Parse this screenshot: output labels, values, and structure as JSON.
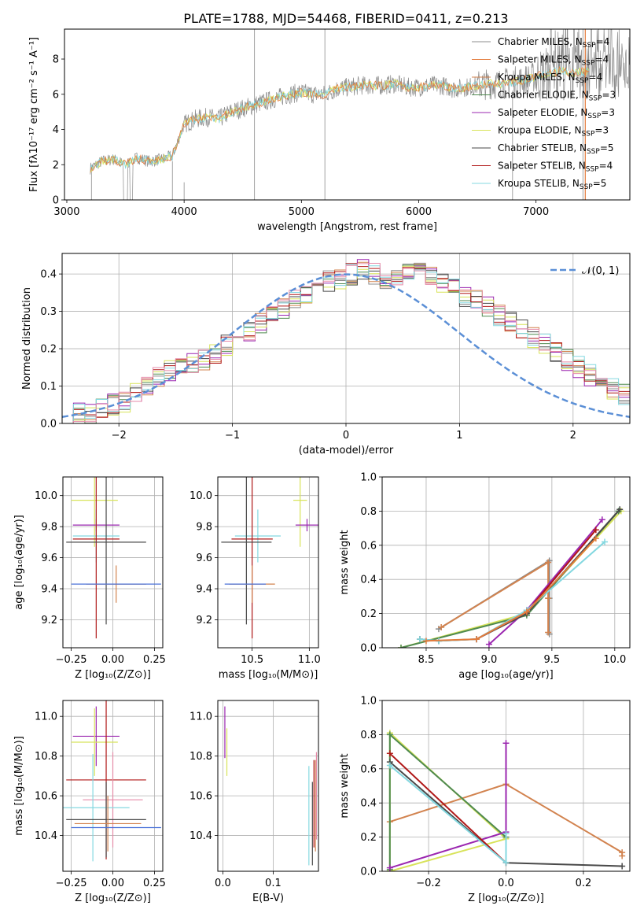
{
  "figure_title": "PLATE=1788, MJD=54468, FIBERID=0411, z=0.213",
  "colors": {
    "Chabrier MILES": "#8c8c8c",
    "Salpeter MILES": "#e37b3c",
    "Kroupa MILES": "#d2834f",
    "Chabrier ELODIE": "#4f8a4f",
    "Salpeter ELODIE": "#9b27b0",
    "Kroupa ELODIE": "#d8e35a",
    "Chabrier STELIB": "#4a4a4a",
    "Salpeter STELIB": "#b01818",
    "Kroupa STELIB": "#84d8e0",
    "normal": "#5b8fd6",
    "extra_blue": "#4a72d8",
    "extra_pink": "#e68aa8"
  },
  "chart_data": [
    {
      "id": "spectrum",
      "type": "line",
      "xlabel": "wavelength [Angstrom, rest frame]",
      "ylabel": "Flux [fλ10⁻¹⁷ erg cm⁻² s⁻¹ A⁻¹]",
      "xlim": [
        2980,
        7800
      ],
      "ylim": [
        0,
        9.7
      ],
      "xticks": [
        "3000",
        "4000",
        "5000",
        "6000",
        "7000"
      ],
      "yticks": [
        "0",
        "2",
        "4",
        "6",
        "8"
      ],
      "legend": {
        "placement": "top-right",
        "entries": [
          {
            "label": "Chabrier MILES, N",
            "sub": "SSP",
            "tail": "=4"
          },
          {
            "label": "Salpeter MILES, N",
            "sub": "SSP",
            "tail": "=4"
          },
          {
            "label": "Kroupa MILES, N",
            "sub": "SSP",
            "tail": "=4"
          },
          {
            "label": "Chabrier ELODIE, N",
            "sub": "SSP",
            "tail": "=3"
          },
          {
            "label": "Salpeter ELODIE, N",
            "sub": "SSP",
            "tail": "=3"
          },
          {
            "label": "Kroupa ELODIE, N",
            "sub": "SSP",
            "tail": "=3"
          },
          {
            "label": "Chabrier STELIB, N",
            "sub": "SSP",
            "tail": "=5"
          },
          {
            "label": "Salpeter STELIB, N",
            "sub": "SSP",
            "tail": "=4"
          },
          {
            "label": "Kroupa STELIB, N",
            "sub": "SSP",
            "tail": "=5"
          }
        ]
      },
      "continuum": [
        [
          3200,
          1.8
        ],
        [
          3300,
          2.2
        ],
        [
          3400,
          2.3
        ],
        [
          3500,
          2.0
        ],
        [
          3600,
          2.4
        ],
        [
          3700,
          2.2
        ],
        [
          3800,
          2.3
        ],
        [
          3900,
          2.5
        ],
        [
          4000,
          4.3
        ],
        [
          4100,
          4.6
        ],
        [
          4200,
          4.7
        ],
        [
          4300,
          4.6
        ],
        [
          4400,
          5.0
        ],
        [
          4500,
          5.2
        ],
        [
          4600,
          5.4
        ],
        [
          4700,
          5.6
        ],
        [
          4800,
          5.8
        ],
        [
          4900,
          6.0
        ],
        [
          5000,
          6.1
        ],
        [
          5100,
          6.0
        ],
        [
          5200,
          6.0
        ],
        [
          5300,
          6.3
        ],
        [
          5400,
          6.4
        ],
        [
          5500,
          6.5
        ],
        [
          5600,
          6.5
        ],
        [
          5700,
          6.5
        ],
        [
          5800,
          6.6
        ],
        [
          5900,
          6.4
        ],
        [
          6000,
          6.4
        ],
        [
          6100,
          6.5
        ],
        [
          6200,
          6.5
        ],
        [
          6300,
          6.3
        ],
        [
          6400,
          6.4
        ],
        [
          6500,
          6.5
        ],
        [
          6600,
          6.6
        ],
        [
          6700,
          6.6
        ],
        [
          6800,
          6.7
        ],
        [
          6900,
          6.8
        ],
        [
          7000,
          7.0
        ],
        [
          7100,
          7.2
        ],
        [
          7200,
          7.3
        ],
        [
          7300,
          7.2
        ],
        [
          7400,
          7.3
        ]
      ]
    },
    {
      "id": "residuals",
      "type": "bar",
      "xlabel": "(data-model)/error",
      "ylabel": "Normed distribution",
      "xlim": [
        -2.5,
        2.5
      ],
      "ylim": [
        0,
        0.455
      ],
      "xticks": [
        "−2",
        "−1",
        "0",
        "1",
        "2"
      ],
      "yticks": [
        "0.0",
        "0.1",
        "0.2",
        "0.3",
        "0.4"
      ],
      "grid": true,
      "legend": {
        "placement": "top-right",
        "label": "𝒩(0, 1)"
      },
      "bin_width": 0.1,
      "counts": [
        0.02,
        0.025,
        0.03,
        0.04,
        0.05,
        0.06,
        0.08,
        0.1,
        0.12,
        0.14,
        0.15,
        0.16,
        0.17,
        0.19,
        0.21,
        0.23,
        0.25,
        0.27,
        0.29,
        0.31,
        0.33,
        0.35,
        0.37,
        0.38,
        0.39,
        0.4,
        0.41,
        0.4,
        0.39,
        0.39,
        0.4,
        0.4,
        0.39,
        0.38,
        0.36,
        0.34,
        0.33,
        0.31,
        0.29,
        0.27,
        0.25,
        0.23,
        0.21,
        0.19,
        0.17,
        0.15,
        0.13,
        0.11,
        0.09,
        0.08
      ]
    },
    {
      "id": "age-Z",
      "type": "scatter",
      "xlabel": "Z [log₁₀(Z/Z⊙)]",
      "ylabel": "age  [log₁₀(age/yr)]",
      "xlim": [
        -0.3,
        0.3
      ],
      "ylim": [
        9.02,
        10.12
      ],
      "xticks": [
        "−0.25",
        "0.00",
        "0.25"
      ],
      "yticks": [
        "9.2",
        "9.4",
        "9.6",
        "9.8",
        "10.0"
      ],
      "grid": true,
      "points": [
        {
          "model": "Kroupa ELODIE",
          "x": -0.11,
          "y": 9.97,
          "xerr": 0.14,
          "yerr": 0.3
        },
        {
          "model": "Salpeter ELODIE",
          "x": -0.1,
          "y": 9.81,
          "xerr": 0.14,
          "yerr": 0.04
        },
        {
          "model": "Kroupa STELIB",
          "x": -0.1,
          "y": 9.74,
          "xerr": 0.14,
          "yerr": 0.17
        },
        {
          "model": "Salpeter STELIB",
          "x": -0.1,
          "y": 9.72,
          "xerr": 0.14,
          "yerr": 0.64
        },
        {
          "model": "Chabrier STELIB",
          "x": -0.04,
          "y": 9.7,
          "xerr": 0.24,
          "yerr": 0.53
        },
        {
          "model": "Kroupa MILES",
          "x": 0.02,
          "y": 9.43,
          "xerr": 0.18,
          "yerr": 0.12
        },
        {
          "model": "extra_blue",
          "x": 0.02,
          "y": 9.43,
          "xerr": 0.27,
          "yerr": 0.0
        }
      ]
    },
    {
      "id": "age-mass",
      "type": "scatter",
      "xlabel": "mass [log₁₀(M/M⊙)]",
      "ylabel": "",
      "xlim": [
        10.2,
        11.08
      ],
      "ylim": [
        9.02,
        10.12
      ],
      "xticks": [
        "10.5",
        "11.0"
      ],
      "yticks": [
        "9.2",
        "9.4",
        "9.6",
        "9.8",
        "10.0"
      ],
      "grid": true,
      "points": [
        {
          "model": "Kroupa ELODIE",
          "x": 10.92,
          "y": 9.97,
          "xerr": 0.06,
          "yerr": 0.3
        },
        {
          "model": "Salpeter ELODIE",
          "x": 10.98,
          "y": 9.81,
          "xerr": 0.1,
          "yerr": 0.04
        },
        {
          "model": "Kroupa STELIB",
          "x": 10.55,
          "y": 9.74,
          "xerr": 0.2,
          "yerr": 0.17
        },
        {
          "model": "Salpeter STELIB",
          "x": 10.5,
          "y": 9.72,
          "xerr": 0.18,
          "yerr": 0.64
        },
        {
          "model": "Chabrier STELIB",
          "x": 10.45,
          "y": 9.7,
          "xerr": 0.22,
          "yerr": 0.53
        },
        {
          "model": "Kroupa MILES",
          "x": 10.5,
          "y": 9.43,
          "xerr": 0.2,
          "yerr": 0.12
        },
        {
          "model": "extra_blue",
          "x": 10.44,
          "y": 9.43,
          "xerr": 0.18,
          "yerr": 0.0
        }
      ]
    },
    {
      "id": "weight-age",
      "type": "line",
      "xlabel": "age  [log₁₀(age/yr)]",
      "ylabel": "mass weight",
      "xlim": [
        8.15,
        10.12
      ],
      "ylim": [
        0.0,
        1.0
      ],
      "xticks": [
        "8.5",
        "9.0",
        "9.5",
        "10.0"
      ],
      "yticks": [
        "0.0",
        "0.2",
        "0.4",
        "0.6",
        "0.8",
        "1.0"
      ],
      "grid": true,
      "series": [
        {
          "model": "Chabrier MILES",
          "x": [
            8.6,
            9.48,
            9.48,
            9.48
          ],
          "y": [
            0.11,
            0.51,
            0.29,
            0.08
          ]
        },
        {
          "model": "Kroupa MILES",
          "x": [
            8.62,
            9.47,
            9.47,
            9.47
          ],
          "y": [
            0.12,
            0.5,
            0.29,
            0.09
          ]
        },
        {
          "model": "Kroupa ELODIE",
          "x": [
            8.3,
            9.3,
            10.05
          ],
          "y": [
            0.0,
            0.2,
            0.8
          ]
        },
        {
          "model": "Chabrier ELODIE",
          "x": [
            8.3,
            9.3,
            10.03
          ],
          "y": [
            0.0,
            0.19,
            0.8
          ]
        },
        {
          "model": "Salpeter ELODIE",
          "x": [
            9.0,
            9.3,
            9.9
          ],
          "y": [
            0.02,
            0.22,
            0.75
          ]
        },
        {
          "model": "Chabrier STELIB",
          "x": [
            8.45,
            8.6,
            8.9,
            9.3,
            10.04
          ],
          "y": [
            0.05,
            0.04,
            0.05,
            0.2,
            0.81
          ]
        },
        {
          "model": "Salpeter STELIB",
          "x": [
            8.9,
            9.3,
            9.85
          ],
          "y": [
            0.05,
            0.21,
            0.69
          ]
        },
        {
          "model": "Kroupa STELIB",
          "x": [
            8.45,
            8.6,
            8.9,
            9.3,
            9.92
          ],
          "y": [
            0.05,
            0.04,
            0.05,
            0.22,
            0.62
          ]
        },
        {
          "model": "Salpeter MILES",
          "x": [
            8.5,
            8.9,
            9.3,
            9.85
          ],
          "y": [
            0.04,
            0.05,
            0.21,
            0.64
          ]
        }
      ]
    },
    {
      "id": "mass-Z",
      "type": "scatter",
      "xlabel": "Z [log₁₀(Z/Z⊙)]",
      "ylabel": "mass [log₁₀(M/M⊙)]",
      "xlim": [
        -0.3,
        0.3
      ],
      "ylim": [
        10.22,
        11.08
      ],
      "xticks": [
        "−0.25",
        "0.00",
        "0.25"
      ],
      "yticks": [
        "10.4",
        "10.6",
        "10.8",
        "11.0"
      ],
      "grid": true,
      "points": [
        {
          "model": "Salpeter ELODIE",
          "x": -0.1,
          "y": 10.9,
          "xerr": 0.14,
          "yerr": 0.15
        },
        {
          "model": "Kroupa ELODIE",
          "x": -0.11,
          "y": 10.87,
          "xerr": 0.14,
          "yerr": 0.17
        },
        {
          "model": "Salpeter STELIB",
          "x": -0.04,
          "y": 10.68,
          "xerr": 0.24,
          "yerr": 0.4
        },
        {
          "model": "extra_pink",
          "x": 0.0,
          "y": 10.58,
          "xerr": 0.18,
          "yerr": 0.24
        },
        {
          "model": "Kroupa STELIB",
          "x": -0.12,
          "y": 10.54,
          "xerr": 0.22,
          "yerr": 0.27
        },
        {
          "model": "Chabrier STELIB",
          "x": -0.04,
          "y": 10.48,
          "xerr": 0.24,
          "yerr": 0.19
        },
        {
          "model": "Kroupa MILES",
          "x": -0.03,
          "y": 10.46,
          "xerr": 0.2,
          "yerr": 0.14
        },
        {
          "model": "extra_blue",
          "x": 0.02,
          "y": 10.44,
          "xerr": 0.27,
          "yerr": 0.0
        }
      ]
    },
    {
      "id": "mass-EBV",
      "type": "scatter",
      "xlabel": "E(B-V)",
      "ylabel": "",
      "xlim": [
        -0.01,
        0.19
      ],
      "ylim": [
        10.22,
        11.08
      ],
      "xticks": [
        "0.0",
        "0.1"
      ],
      "yticks": [
        "10.4",
        "10.6",
        "10.8",
        "11.0"
      ],
      "grid": true,
      "points": [
        {
          "model": "Salpeter ELODIE",
          "x": 0.004,
          "y": 10.92,
          "yerr": 0.13
        },
        {
          "model": "Kroupa ELODIE",
          "x": 0.008,
          "y": 10.82,
          "yerr": 0.12
        },
        {
          "model": "Kroupa STELIB",
          "x": 0.171,
          "y": 10.5,
          "yerr": 0.25
        },
        {
          "model": "Chabrier STELIB",
          "x": 0.178,
          "y": 10.46,
          "yerr": 0.21
        },
        {
          "model": "Salpeter STELIB",
          "x": 0.181,
          "y": 10.56,
          "yerr": 0.22
        },
        {
          "model": "Kroupa MILES",
          "x": 0.184,
          "y": 10.55,
          "yerr": 0.23
        },
        {
          "model": "extra_pink",
          "x": 0.186,
          "y": 10.6,
          "yerr": 0.22
        }
      ]
    },
    {
      "id": "weight-Z",
      "type": "line",
      "xlabel": "Z [log₁₀(Z/Z⊙)]",
      "ylabel": "mass weight",
      "xlim": [
        -0.32,
        0.32
      ],
      "ylim": [
        0.0,
        1.0
      ],
      "xticks": [
        "−0.2",
        "0.0",
        "0.2"
      ],
      "yticks": [
        "0.0",
        "0.2",
        "0.4",
        "0.6",
        "0.8",
        "1.0"
      ],
      "grid": true,
      "series": [
        {
          "model": "Kroupa MILES",
          "x": [
            -0.3,
            0.0,
            0.3,
            0.3
          ],
          "y": [
            0.29,
            0.51,
            0.11,
            0.09
          ]
        },
        {
          "model": "Kroupa ELODIE",
          "x": [
            -0.3,
            -0.3,
            0.0,
            -0.3
          ],
          "y": [
            0.0,
            0.81,
            0.19,
            0.0
          ]
        },
        {
          "model": "Chabrier ELODIE",
          "x": [
            -0.3,
            -0.3,
            0.0
          ],
          "y": [
            0.01,
            0.8,
            0.2
          ]
        },
        {
          "model": "Salpeter ELODIE",
          "x": [
            -0.3,
            0.0,
            0.0
          ],
          "y": [
            0.02,
            0.23,
            0.75
          ]
        },
        {
          "model": "Chabrier STELIB",
          "x": [
            -0.3,
            0.0,
            0.3
          ],
          "y": [
            0.64,
            0.05,
            0.03
          ]
        },
        {
          "model": "Salpeter STELIB",
          "x": [
            -0.3,
            0.0
          ],
          "y": [
            0.69,
            0.05
          ]
        },
        {
          "model": "Kroupa STELIB",
          "x": [
            -0.3,
            0.0,
            0.0
          ],
          "y": [
            0.62,
            0.05,
            0.22
          ]
        }
      ]
    }
  ]
}
